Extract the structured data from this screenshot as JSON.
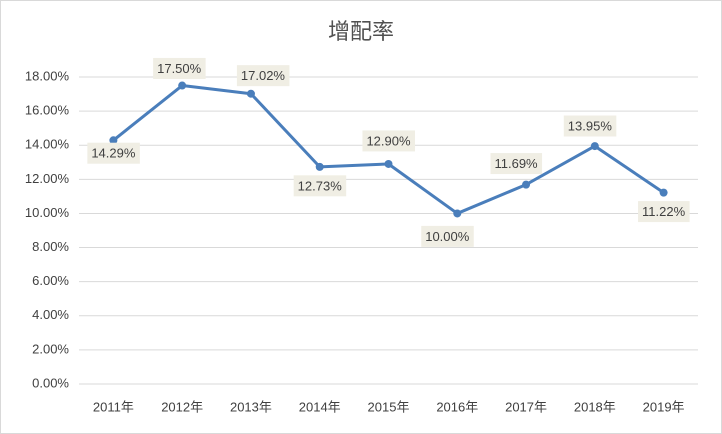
{
  "chart_data": {
    "type": "line",
    "title": "增配率",
    "categories": [
      "2011年",
      "2012年",
      "2013年",
      "2014年",
      "2015年",
      "2016年",
      "2017年",
      "2018年",
      "2019年"
    ],
    "series": [
      {
        "name": "增配率",
        "color": "#4a7ebb",
        "values": [
          14.29,
          17.5,
          17.02,
          12.73,
          12.9,
          10.0,
          11.69,
          13.95,
          11.22
        ],
        "value_labels": [
          "14.29%",
          "17.50%",
          "17.02%",
          "12.73%",
          "12.90%",
          "10.00%",
          "11.69%",
          "13.95%",
          "11.22%"
        ]
      }
    ],
    "ylim": [
      0,
      18
    ],
    "yticks": [
      {
        "value": 0,
        "label": "0.00%"
      },
      {
        "value": 2,
        "label": "2.00%"
      },
      {
        "value": 4,
        "label": "4.00%"
      },
      {
        "value": 6,
        "label": "6.00%"
      },
      {
        "value": 8,
        "label": "8.00%"
      },
      {
        "value": 10,
        "label": "10.00%"
      },
      {
        "value": 12,
        "label": "12.00%"
      },
      {
        "value": 14,
        "label": "14.00%"
      },
      {
        "value": 16,
        "label": "16.00%"
      },
      {
        "value": 18,
        "label": "18.00%"
      }
    ],
    "grid": true
  }
}
